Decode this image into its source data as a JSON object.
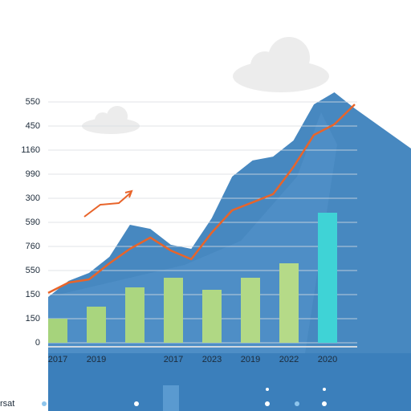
{
  "chart_data": {
    "type": "bar",
    "categories": [
      "2017",
      "2019",
      null,
      "2017",
      "2023",
      "2019",
      "2022",
      "2020"
    ],
    "values": [
      1.0,
      1.5,
      2.3,
      2.7,
      2.2,
      2.7,
      3.3,
      5.4
    ],
    "colors": [
      "#a6d37c",
      "#a9d57e",
      "#abd680",
      "#aed782",
      "#b0d884",
      "#b2d986",
      "#b5da88",
      "#3fd3d6"
    ],
    "ylim": [
      0,
      10
    ],
    "yticks": [
      {
        "value": 0,
        "label": "0"
      },
      {
        "value": 1,
        "label": "150"
      },
      {
        "value": 2,
        "label": "150"
      },
      {
        "value": 3,
        "label": "550"
      },
      {
        "value": 4,
        "label": "760"
      },
      {
        "value": 5,
        "label": "590"
      },
      {
        "value": 6,
        "label": "300"
      },
      {
        "value": 7,
        "label": "990"
      },
      {
        "value": 8,
        "label": "1160"
      },
      {
        "value": 9,
        "label": "450"
      },
      {
        "value": 10,
        "label": "550"
      }
    ],
    "grid": true,
    "line": {
      "color": "#e8642a",
      "values": [
        2.07,
        2.5,
        2.63,
        3.3,
        3.9,
        4.37,
        3.83,
        3.47,
        4.57,
        5.5,
        5.83,
        6.17,
        7.3,
        8.63,
        9.07,
        9.9
      ]
    },
    "area": {
      "color": "#3d82bd",
      "values": [
        1.9,
        2.57,
        2.9,
        3.57,
        4.9,
        4.73,
        4.07,
        3.9,
        5.17,
        6.9,
        7.57,
        7.73,
        8.4,
        9.9,
        10.4,
        9.73
      ]
    },
    "footer": "rsat"
  }
}
